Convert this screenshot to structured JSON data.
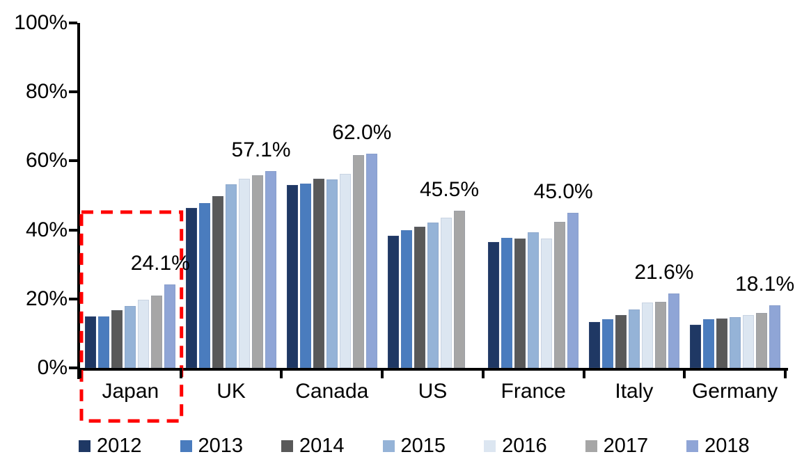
{
  "chart_data": {
    "type": "bar",
    "title": "",
    "xlabel": "",
    "ylabel": "",
    "categories": [
      "Japan",
      "UK",
      "Canada",
      "US",
      "France",
      "Italy",
      "Germany"
    ],
    "series": [
      {
        "name": "2012",
        "color": "#1F3864",
        "values": [
          14.9,
          46.3,
          53.0,
          38.3,
          36.5,
          13.3,
          12.6
        ]
      },
      {
        "name": "2013",
        "color": "#4A7CBE",
        "values": [
          15.0,
          47.7,
          53.4,
          40.0,
          37.7,
          14.2,
          14.1
        ]
      },
      {
        "name": "2014",
        "color": "#595959",
        "values": [
          16.7,
          49.8,
          54.8,
          41.0,
          37.6,
          15.3,
          14.4
        ]
      },
      {
        "name": "2015",
        "color": "#95B3D7",
        "values": [
          18.0,
          53.2,
          54.6,
          42.1,
          39.3,
          16.9,
          14.7
        ]
      },
      {
        "name": "2016",
        "color": "#DCE6F1",
        "values": [
          19.8,
          54.9,
          56.2,
          43.6,
          37.4,
          19.0,
          15.3
        ]
      },
      {
        "name": "2017",
        "color": "#A6A6A6",
        "values": [
          21.0,
          55.8,
          61.6,
          45.5,
          42.4,
          19.2,
          15.9
        ]
      },
      {
        "name": "2018",
        "color": "#8FA5D6",
        "values": [
          24.1,
          57.1,
          62.0,
          null,
          45.0,
          21.6,
          18.1
        ]
      }
    ],
    "data_labels": [
      {
        "category": "Japan",
        "text": "24.1%"
      },
      {
        "category": "UK",
        "text": "57.1%"
      },
      {
        "category": "Canada",
        "text": "62.0%"
      },
      {
        "category": "US",
        "text": "45.5%"
      },
      {
        "category": "France",
        "text": "45.0%"
      },
      {
        "category": "Italy",
        "text": "21.6%"
      },
      {
        "category": "Germany",
        "text": "18.1%"
      }
    ],
    "y_axis": {
      "ticks": [
        "0%",
        "20%",
        "40%",
        "60%",
        "80%",
        "100%"
      ],
      "min": 0,
      "max": 100,
      "grid": false
    },
    "legend": {
      "position": "bottom",
      "entries": [
        "2012",
        "2013",
        "2014",
        "2015",
        "2016",
        "2017",
        "2018"
      ]
    },
    "highlight": {
      "category": "Japan",
      "color": "#FF0000",
      "style": "dashed-rectangle"
    }
  }
}
